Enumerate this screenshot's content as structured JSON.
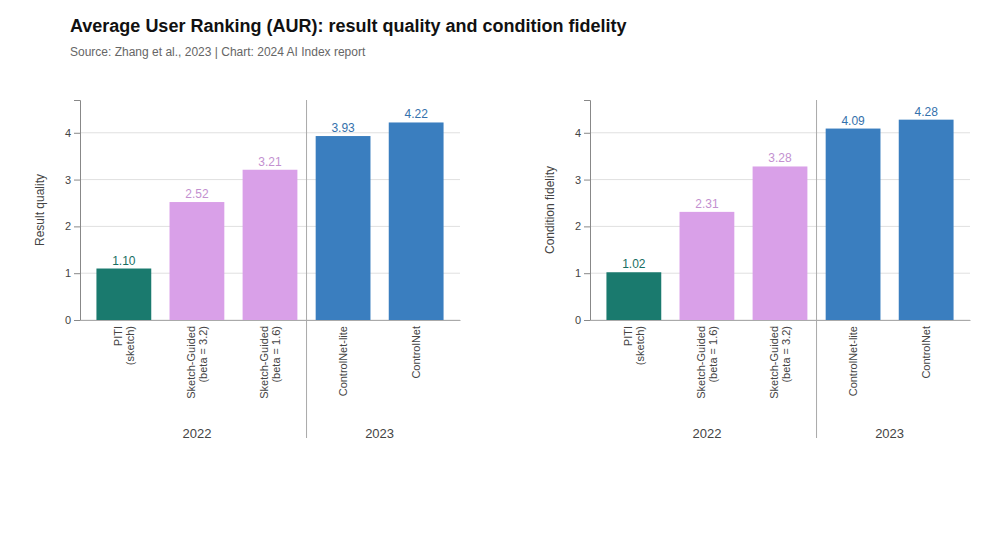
{
  "chart_data": [
    {
      "type": "bar",
      "title": "Average User Ranking (AUR): result quality and condition fidelity",
      "subtitle": "Source: Zhang et al., 2023 | Chart: 2024 AI Index report",
      "ylabel": "Result quality",
      "categories": [
        "PITI\n(sketch)",
        "Sketch-Guided\n(beta = 3.2)",
        "Sketch-Guided\n(beta = 1.6)",
        "ControlNet-lite",
        "ControlNet"
      ],
      "values": [
        1.1,
        2.52,
        3.21,
        3.93,
        4.22
      ],
      "value_labels": [
        "1.10",
        "2.52",
        "3.21",
        "3.93",
        "4.22"
      ],
      "data_labels": true,
      "colors": [
        "#1a7a6e",
        "#d9a0e8",
        "#d9a0e8",
        "#3a7ebf",
        "#3a7ebf"
      ],
      "groups": [
        {
          "label": "2022",
          "bars": [
            0,
            1,
            2
          ]
        },
        {
          "label": "2023",
          "bars": [
            3,
            4
          ]
        }
      ],
      "ylim": [
        0,
        4.7
      ],
      "yticks": [
        0,
        1,
        2,
        3,
        4
      ],
      "grid": true
    },
    {
      "type": "bar",
      "ylabel": "Condition fidelity",
      "categories": [
        "PITI\n(sketch)",
        "Sketch-Guided\n(beta = 1.6)",
        "Sketch-Guided\n(beta = 3.2)",
        "ControlNet-lite",
        "ControlNet"
      ],
      "values": [
        1.02,
        2.31,
        3.28,
        4.09,
        4.28
      ],
      "value_labels": [
        "1.02",
        "2.31",
        "3.28",
        "4.09",
        "4.28"
      ],
      "data_labels": true,
      "colors": [
        "#1a7a6e",
        "#d9a0e8",
        "#d9a0e8",
        "#3a7ebf",
        "#3a7ebf"
      ],
      "groups": [
        {
          "label": "2022",
          "bars": [
            0,
            1,
            2
          ]
        },
        {
          "label": "2023",
          "bars": [
            3,
            4
          ]
        }
      ],
      "ylim": [
        0,
        4.7
      ],
      "yticks": [
        0,
        1,
        2,
        3,
        4
      ],
      "grid": true
    }
  ]
}
